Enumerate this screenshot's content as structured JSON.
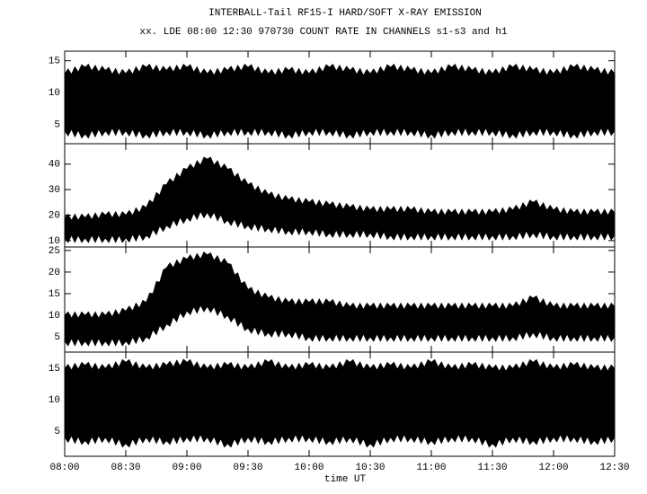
{
  "chart_data": [
    {
      "type": "band",
      "title": "INTERBALL-Tail RF15-I HARD/SOFT X-RAY EMISSION",
      "subtitle": "xx. LDE 08:00 12:30 970730  COUNT RATE IN CHANNELS s1-s3 and h1",
      "x": [
        "08:00",
        "08:10",
        "08:20",
        "08:30",
        "08:40",
        "08:50",
        "09:00",
        "09:10",
        "09:20",
        "09:30",
        "09:40",
        "09:50",
        "10:00",
        "10:10",
        "10:20",
        "10:30",
        "10:40",
        "10:50",
        "11:00",
        "11:10",
        "11:20",
        "11:30",
        "11:40",
        "11:50",
        "12:00",
        "12:10",
        "12:20",
        "12:30"
      ],
      "low": [
        4,
        3.5,
        4,
        4,
        3.5,
        4,
        4,
        3.5,
        4,
        4,
        4,
        3.5,
        4,
        4,
        3.5,
        4,
        4,
        4,
        3.5,
        4,
        4,
        4,
        3.5,
        4,
        4,
        3.5,
        4,
        4
      ],
      "high": [
        13,
        14,
        13.5,
        13,
        14,
        13.5,
        14,
        13,
        13.5,
        14,
        13,
        13.5,
        13,
        14,
        13.5,
        13,
        14,
        13.5,
        13,
        14,
        13.5,
        13,
        14,
        13.5,
        13,
        14,
        13.5,
        13
      ],
      "color": "#000000",
      "ylim": [
        2,
        16.5
      ],
      "yticks": [
        5,
        10,
        15
      ]
    },
    {
      "type": "band",
      "x": [
        "08:00",
        "08:10",
        "08:20",
        "08:30",
        "08:40",
        "08:50",
        "09:00",
        "09:10",
        "09:20",
        "09:30",
        "09:40",
        "09:50",
        "10:00",
        "10:10",
        "10:20",
        "10:30",
        "10:40",
        "10:50",
        "11:00",
        "11:10",
        "11:20",
        "11:30",
        "11:40",
        "11:50",
        "12:00",
        "12:10",
        "12:20",
        "12:30"
      ],
      "low": [
        11,
        11,
        11,
        11,
        12,
        16,
        19,
        21,
        18,
        16,
        15,
        14,
        14,
        13,
        13,
        13,
        12,
        12,
        12,
        12,
        12,
        12,
        12,
        13,
        12,
        12,
        12,
        12
      ],
      "high": [
        19,
        19,
        20,
        20,
        23,
        32,
        38,
        42,
        38,
        32,
        28,
        26,
        25,
        24,
        23,
        22,
        22,
        22,
        21,
        21,
        21,
        21,
        22,
        25,
        22,
        21,
        21,
        21
      ],
      "color": "#000000",
      "ylim": [
        7.5,
        48
      ],
      "yticks": [
        10,
        20,
        30,
        40
      ]
    },
    {
      "type": "band",
      "x": [
        "08:00",
        "08:10",
        "08:20",
        "08:30",
        "08:40",
        "08:50",
        "09:00",
        "09:10",
        "09:20",
        "09:30",
        "09:40",
        "09:50",
        "10:00",
        "10:10",
        "10:20",
        "10:30",
        "10:40",
        "10:50",
        "11:00",
        "11:10",
        "11:20",
        "11:30",
        "11:40",
        "11:50",
        "12:00",
        "12:10",
        "12:20",
        "12:30"
      ],
      "low": [
        4,
        4,
        4,
        4,
        5,
        8,
        11,
        12,
        10,
        7,
        6,
        6,
        5,
        5,
        5,
        5,
        5,
        5,
        5,
        5,
        5,
        5,
        5,
        6,
        5,
        5,
        5,
        5
      ],
      "high": [
        10,
        10,
        10,
        11,
        13,
        21,
        23,
        24,
        22,
        16,
        14,
        13,
        13,
        13,
        12,
        12,
        12,
        12,
        12,
        12,
        12,
        12,
        12,
        14,
        12,
        12,
        12,
        12
      ],
      "color": "#000000",
      "ylim": [
        1.5,
        25.8
      ],
      "yticks": [
        5,
        10,
        15,
        20,
        25
      ]
    },
    {
      "type": "band",
      "x": [
        "08:00",
        "08:10",
        "08:20",
        "08:30",
        "08:40",
        "08:50",
        "09:00",
        "09:10",
        "09:20",
        "09:30",
        "09:40",
        "09:50",
        "10:00",
        "10:10",
        "10:20",
        "10:30",
        "10:40",
        "10:50",
        "11:00",
        "11:10",
        "11:20",
        "11:30",
        "11:40",
        "11:50",
        "12:00",
        "12:10",
        "12:20",
        "12:30"
      ],
      "low": [
        4,
        3.5,
        4,
        3,
        4,
        3.5,
        4,
        4,
        3,
        4,
        3.5,
        4,
        4,
        3.5,
        4,
        3,
        4,
        4,
        3.5,
        4,
        4,
        3,
        4,
        3.5,
        4,
        4,
        3.5,
        4
      ],
      "high": [
        15,
        15.5,
        15,
        16,
        15,
        15.5,
        16,
        15,
        15.5,
        15,
        16,
        15,
        15.5,
        15,
        16,
        15,
        15.5,
        15,
        16,
        15,
        15.5,
        15,
        15,
        16,
        15,
        15.5,
        15,
        15
      ],
      "color": "#000000",
      "ylim": [
        1,
        17.6
      ],
      "yticks": [
        5,
        10,
        15
      ],
      "xlabel": "time UT",
      "xlim": [
        "08:00",
        "12:30"
      ],
      "xticks": [
        "08:00",
        "08:30",
        "09:00",
        "09:30",
        "10:00",
        "10:30",
        "11:00",
        "11:30",
        "12:00",
        "12:30"
      ]
    }
  ]
}
